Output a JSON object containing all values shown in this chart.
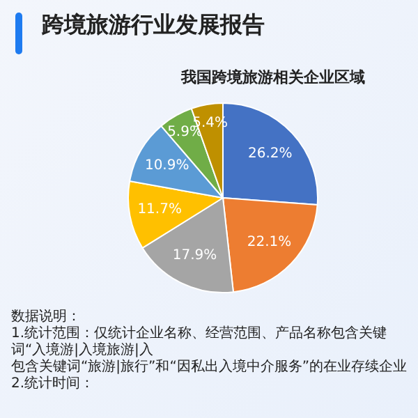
{
  "chart_data": {
    "type": "pie",
    "title": "跨境旅游行业发展报告",
    "subtitle": "我国跨境旅游相关企业区域",
    "categories": [
      null,
      null,
      null,
      null,
      null,
      null,
      null
    ],
    "values": [
      26.2,
      22.1,
      17.9,
      11.7,
      10.9,
      5.9,
      5.4
    ],
    "value_labels": [
      "26.2%",
      "22.1%",
      "17.9%",
      "11.7%",
      "10.9%",
      "5.9%",
      "5.4%"
    ],
    "colors": [
      "#4472c4",
      "#ed7d31",
      "#a5a5a5",
      "#ffc000",
      "#5b9bd5",
      "#70ad47",
      "#bf9000"
    ],
    "annotations": [
      "数据说明：",
      "1.统计范围：仅统计企业名称、经营范围、产品名称包含关键词“入境游|入境旅游|入",
      "包含关键词“旅游|旅行”和“因私出入境中介服务”的在业存续企业",
      "2.统计时间："
    ]
  }
}
